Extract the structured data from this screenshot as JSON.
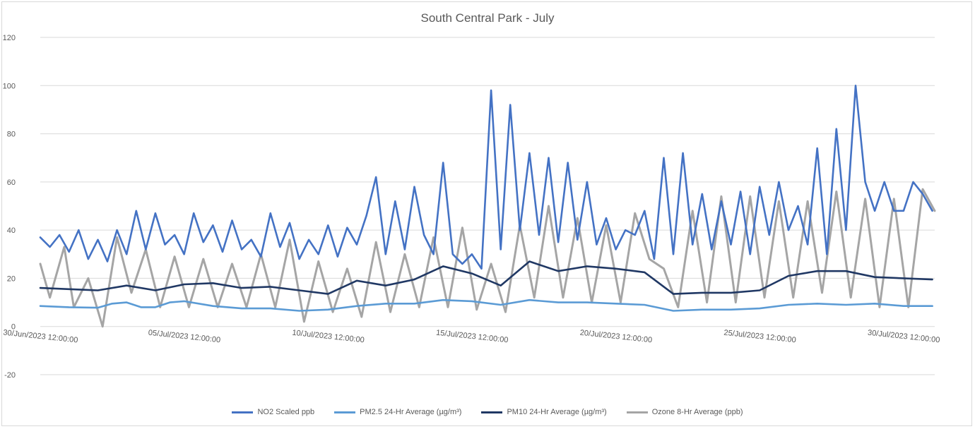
{
  "chart_data": {
    "type": "line",
    "title": "South Central Park - July",
    "xlabel": "",
    "ylabel": "",
    "ylim": [
      -20,
      120
    ],
    "yticks": [
      -20,
      0,
      20,
      40,
      60,
      80,
      100,
      120
    ],
    "xlim": [
      "2023-06-30T12:00",
      "2023-07-31T14:00"
    ],
    "xticks": [
      "30/Jun/2023 12:00:00",
      "05/Jul/2023 12:00:00",
      "10/Jul/2023 12:00:00",
      "15/Jul/2023 12:00:00",
      "20/Jul/2023 12:00:00",
      "25/Jul/2023 12:00:00",
      "30/Jul/2023 12:00:00"
    ],
    "grid": "horizontal",
    "legend": "bottom",
    "series": [
      {
        "name": "NO2 Scaled ppb",
        "color": "#4472C4",
        "x": [
          "2023-06-30T12:00",
          "2023-06-30T20:00",
          "2023-07-01T04:00",
          "2023-07-01T12:00",
          "2023-07-01T20:00",
          "2023-07-02T04:00",
          "2023-07-02T12:00",
          "2023-07-02T20:00",
          "2023-07-03T04:00",
          "2023-07-03T12:00",
          "2023-07-03T20:00",
          "2023-07-04T04:00",
          "2023-07-04T12:00",
          "2023-07-04T20:00",
          "2023-07-05T04:00",
          "2023-07-05T12:00",
          "2023-07-05T20:00",
          "2023-07-06T04:00",
          "2023-07-06T12:00",
          "2023-07-06T20:00",
          "2023-07-07T04:00",
          "2023-07-07T12:00",
          "2023-07-07T20:00",
          "2023-07-08T04:00",
          "2023-07-08T12:00",
          "2023-07-08T20:00",
          "2023-07-09T04:00",
          "2023-07-09T12:00",
          "2023-07-09T20:00",
          "2023-07-10T04:00",
          "2023-07-10T12:00",
          "2023-07-10T20:00",
          "2023-07-11T04:00",
          "2023-07-11T12:00",
          "2023-07-11T20:00",
          "2023-07-12T04:00",
          "2023-07-12T12:00",
          "2023-07-12T20:00",
          "2023-07-13T04:00",
          "2023-07-13T12:00",
          "2023-07-13T20:00",
          "2023-07-14T04:00",
          "2023-07-14T12:00",
          "2023-07-14T20:00",
          "2023-07-15T04:00",
          "2023-07-15T12:00",
          "2023-07-15T20:00",
          "2023-07-16T04:00",
          "2023-07-16T12:00",
          "2023-07-16T20:00",
          "2023-07-17T04:00",
          "2023-07-17T12:00",
          "2023-07-17T20:00",
          "2023-07-18T04:00",
          "2023-07-18T12:00",
          "2023-07-18T20:00",
          "2023-07-19T04:00",
          "2023-07-19T12:00",
          "2023-07-19T20:00",
          "2023-07-20T04:00",
          "2023-07-20T12:00",
          "2023-07-20T20:00",
          "2023-07-21T04:00",
          "2023-07-21T12:00",
          "2023-07-21T20:00",
          "2023-07-22T04:00",
          "2023-07-22T12:00",
          "2023-07-22T20:00",
          "2023-07-23T04:00",
          "2023-07-23T12:00",
          "2023-07-23T20:00",
          "2023-07-24T04:00",
          "2023-07-24T12:00",
          "2023-07-24T20:00",
          "2023-07-25T04:00",
          "2023-07-25T12:00",
          "2023-07-25T20:00",
          "2023-07-26T04:00",
          "2023-07-26T12:00",
          "2023-07-26T20:00",
          "2023-07-27T04:00",
          "2023-07-27T12:00",
          "2023-07-27T20:00",
          "2023-07-28T04:00",
          "2023-07-28T12:00",
          "2023-07-28T20:00",
          "2023-07-29T04:00",
          "2023-07-29T12:00",
          "2023-07-29T20:00",
          "2023-07-30T04:00",
          "2023-07-30T12:00",
          "2023-07-30T20:00",
          "2023-07-31T04:00",
          "2023-07-31T12:00"
        ],
        "values": [
          37,
          33,
          38,
          31,
          40,
          28,
          36,
          27,
          40,
          30,
          48,
          32,
          47,
          34,
          38,
          30,
          47,
          35,
          42,
          31,
          44,
          32,
          36,
          29,
          47,
          33,
          43,
          28,
          36,
          30,
          42,
          29,
          41,
          34,
          46,
          62,
          30,
          52,
          32,
          58,
          38,
          30,
          68,
          30,
          26,
          30,
          24,
          98,
          32,
          92,
          40,
          72,
          38,
          70,
          35,
          68,
          36,
          60,
          34,
          45,
          32,
          40,
          38,
          48,
          28,
          70,
          30,
          72,
          34,
          55,
          32,
          52,
          34,
          56,
          30,
          58,
          38,
          60,
          40,
          50,
          34,
          74,
          30,
          82,
          40,
          100,
          60,
          48,
          60,
          48,
          48,
          60,
          55,
          48
        ]
      },
      {
        "name": "PM2.5 24-Hr Average (µg/m³)",
        "color": "#5B9BD5",
        "x": [
          "2023-06-30T12:00",
          "2023-07-01T12:00",
          "2023-07-02T12:00",
          "2023-07-03T00:00",
          "2023-07-03T12:00",
          "2023-07-04T00:00",
          "2023-07-04T12:00",
          "2023-07-05T00:00",
          "2023-07-05T12:00",
          "2023-07-06T12:00",
          "2023-07-07T12:00",
          "2023-07-08T12:00",
          "2023-07-09T12:00",
          "2023-07-10T12:00",
          "2023-07-11T12:00",
          "2023-07-12T12:00",
          "2023-07-13T12:00",
          "2023-07-14T12:00",
          "2023-07-15T12:00",
          "2023-07-16T12:00",
          "2023-07-17T12:00",
          "2023-07-18T12:00",
          "2023-07-19T12:00",
          "2023-07-20T12:00",
          "2023-07-21T12:00",
          "2023-07-22T12:00",
          "2023-07-23T12:00",
          "2023-07-24T12:00",
          "2023-07-25T12:00",
          "2023-07-26T12:00",
          "2023-07-27T12:00",
          "2023-07-28T12:00",
          "2023-07-29T12:00",
          "2023-07-30T12:00",
          "2023-07-31T12:00"
        ],
        "values": [
          8.5,
          8,
          7.8,
          9.5,
          10,
          8,
          8,
          10,
          10.5,
          8.5,
          7.5,
          7.5,
          6.5,
          7,
          8.5,
          9.5,
          9.5,
          11,
          10.5,
          9,
          11,
          10,
          10,
          9.5,
          9,
          6.5,
          7,
          7,
          7.5,
          9,
          9.5,
          9,
          9.5,
          8.5,
          8.5
        ]
      },
      {
        "name": "PM10 24-Hr Average (µg/m³)",
        "color": "#203864",
        "x": [
          "2023-06-30T12:00",
          "2023-07-01T12:00",
          "2023-07-02T12:00",
          "2023-07-03T12:00",
          "2023-07-04T12:00",
          "2023-07-05T12:00",
          "2023-07-06T12:00",
          "2023-07-07T12:00",
          "2023-07-08T12:00",
          "2023-07-09T12:00",
          "2023-07-10T12:00",
          "2023-07-11T12:00",
          "2023-07-12T12:00",
          "2023-07-13T12:00",
          "2023-07-14T12:00",
          "2023-07-15T12:00",
          "2023-07-16T12:00",
          "2023-07-17T12:00",
          "2023-07-18T12:00",
          "2023-07-19T12:00",
          "2023-07-20T12:00",
          "2023-07-21T12:00",
          "2023-07-22T12:00",
          "2023-07-23T12:00",
          "2023-07-24T12:00",
          "2023-07-25T12:00",
          "2023-07-26T12:00",
          "2023-07-27T12:00",
          "2023-07-28T12:00",
          "2023-07-29T12:00",
          "2023-07-30T12:00",
          "2023-07-31T12:00"
        ],
        "values": [
          16,
          15.5,
          15,
          17,
          15,
          17.5,
          18,
          16,
          16.5,
          15,
          13.5,
          19,
          17,
          19.5,
          25,
          22,
          17,
          27,
          23,
          25,
          24,
          22.5,
          13.5,
          14,
          14,
          15,
          21,
          23,
          23,
          20.5,
          20,
          19.5
        ]
      },
      {
        "name": "Ozone 8-Hr Average (ppb)",
        "color": "#A5A5A5",
        "x": [
          "2023-06-30T12:00",
          "2023-06-30T20:00",
          "2023-07-01T08:00",
          "2023-07-01T16:00",
          "2023-07-02T04:00",
          "2023-07-02T16:00",
          "2023-07-03T04:00",
          "2023-07-03T16:00",
          "2023-07-04T04:00",
          "2023-07-04T16:00",
          "2023-07-05T04:00",
          "2023-07-05T16:00",
          "2023-07-06T04:00",
          "2023-07-06T16:00",
          "2023-07-07T04:00",
          "2023-07-07T16:00",
          "2023-07-08T04:00",
          "2023-07-08T16:00",
          "2023-07-09T04:00",
          "2023-07-09T16:00",
          "2023-07-10T04:00",
          "2023-07-10T16:00",
          "2023-07-11T04:00",
          "2023-07-11T16:00",
          "2023-07-12T04:00",
          "2023-07-12T16:00",
          "2023-07-13T04:00",
          "2023-07-13T16:00",
          "2023-07-14T04:00",
          "2023-07-14T16:00",
          "2023-07-15T04:00",
          "2023-07-15T16:00",
          "2023-07-16T04:00",
          "2023-07-16T16:00",
          "2023-07-17T04:00",
          "2023-07-17T16:00",
          "2023-07-18T04:00",
          "2023-07-18T16:00",
          "2023-07-19T04:00",
          "2023-07-19T16:00",
          "2023-07-20T04:00",
          "2023-07-20T16:00",
          "2023-07-21T04:00",
          "2023-07-21T16:00",
          "2023-07-22T04:00",
          "2023-07-22T16:00",
          "2023-07-23T04:00",
          "2023-07-23T16:00",
          "2023-07-24T04:00",
          "2023-07-24T16:00",
          "2023-07-25T04:00",
          "2023-07-25T16:00",
          "2023-07-26T04:00",
          "2023-07-26T16:00",
          "2023-07-27T04:00",
          "2023-07-27T16:00",
          "2023-07-28T04:00",
          "2023-07-28T16:00",
          "2023-07-29T04:00",
          "2023-07-29T16:00",
          "2023-07-30T04:00",
          "2023-07-30T16:00",
          "2023-07-31T04:00",
          "2023-07-31T14:00"
        ],
        "values": [
          26,
          12,
          33,
          8,
          20,
          0,
          37,
          14,
          32,
          8,
          29,
          8,
          28,
          8,
          26,
          8,
          30,
          8,
          36,
          2,
          27,
          6,
          24,
          4,
          35,
          6,
          30,
          8,
          37,
          8,
          41,
          7,
          26,
          6,
          42,
          12,
          50,
          12,
          45,
          10,
          42,
          10,
          47,
          28,
          24,
          8,
          48,
          10,
          54,
          10,
          54,
          12,
          52,
          12,
          52,
          14,
          56,
          12,
          53,
          8,
          53,
          8,
          57,
          48
        ]
      }
    ]
  }
}
